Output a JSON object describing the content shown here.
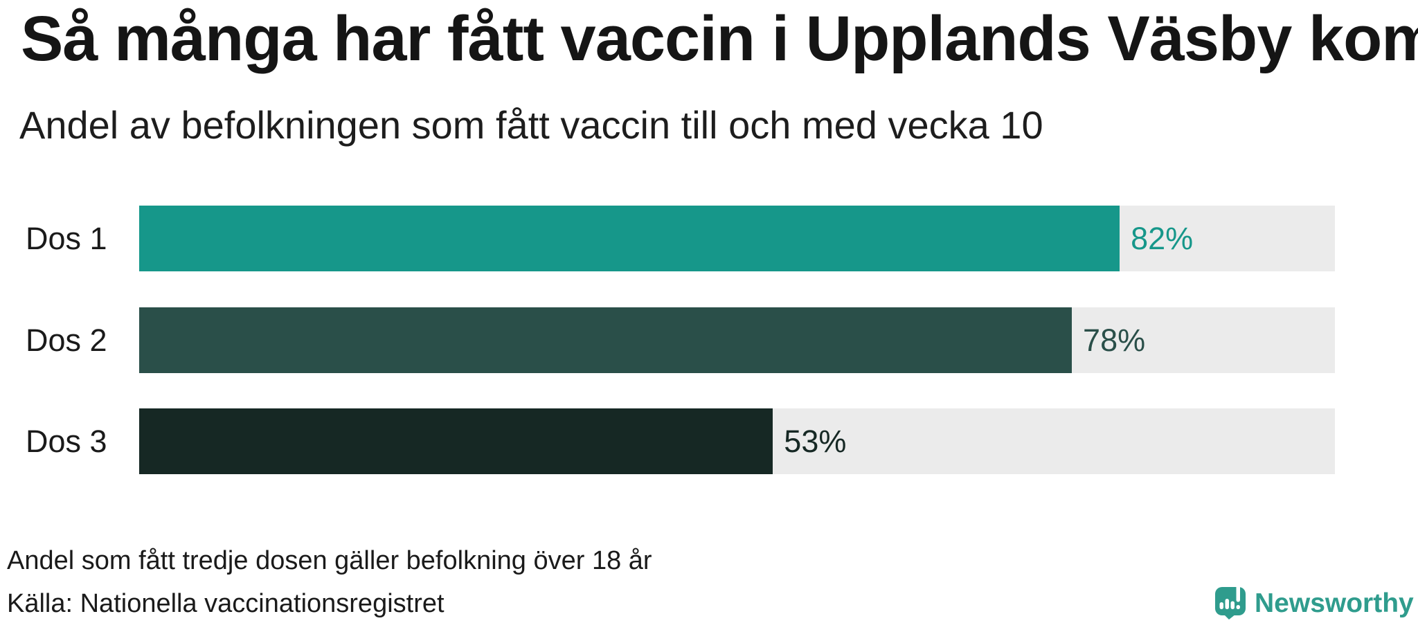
{
  "header": {
    "title": "Så många har fått vaccin i Upplands Väsby kommun",
    "subtitle": "Andel av befolkningen som fått vaccin till och med vecka 10"
  },
  "chart_data": {
    "type": "bar",
    "orientation": "horizontal",
    "title": "Så många har fått vaccin i Upplands Väsby kommun",
    "subtitle": "Andel av befolkningen som fått vaccin till och med vecka 10",
    "categories": [
      "Dos 1",
      "Dos 2",
      "Dos 3"
    ],
    "values": [
      82,
      78,
      53
    ],
    "value_labels": [
      "82%",
      "78%",
      "53%"
    ],
    "unit": "%",
    "xlim": [
      0,
      100
    ],
    "grid": false,
    "legend": "none",
    "bar_colors": [
      "#16978a",
      "#2a4f49",
      "#162824"
    ],
    "track_color": "#ebebeb"
  },
  "footer": {
    "note": "Andel som fått tredje dosen gäller befolkning över 18 år",
    "source": "Källa: Nationella vaccinationsregistret"
  },
  "branding": {
    "logo_text": "Newsworthy",
    "logo_icon": "newsworthy-speech-bubble-barchart-icon",
    "logo_color": "#2f9c8d"
  },
  "colors": {
    "background": "#ffffff",
    "text": "#1a1a1a",
    "accent_teal": "#16978a"
  }
}
